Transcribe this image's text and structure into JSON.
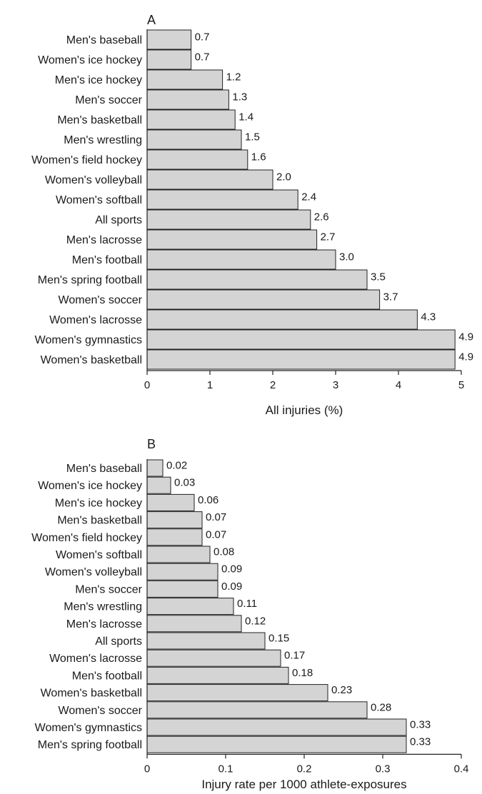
{
  "colors": {
    "bar_fill": "#d4d4d4",
    "bar_stroke": "#222222",
    "text": "#1a1a1a"
  },
  "chart_data": [
    {
      "type": "bar",
      "orientation": "horizontal",
      "panel": "A",
      "xlabel": "All injuries (%)",
      "xlim": [
        0,
        5
      ],
      "xticks": [
        "0",
        "1",
        "2",
        "3",
        "4",
        "5"
      ],
      "categories": [
        "Men's baseball",
        "Women's ice hockey",
        "Men's ice hockey",
        "Men's soccer",
        "Men's basketball",
        "Men's wrestling",
        "Women's field hockey",
        "Women's volleyball",
        "Women's softball",
        "All sports",
        "Men's lacrosse",
        "Men's football",
        "Men's spring football",
        "Women's soccer",
        "Women's lacrosse",
        "Women's gymnastics",
        "Women's basketball"
      ],
      "values": [
        0.7,
        0.7,
        1.2,
        1.3,
        1.4,
        1.5,
        1.6,
        2.0,
        2.4,
        2.6,
        2.7,
        3.0,
        3.5,
        3.7,
        4.3,
        4.9,
        4.9
      ],
      "value_labels": [
        "0.7",
        "0.7",
        "1.2",
        "1.3",
        "1.4",
        "1.5",
        "1.6",
        "2.0",
        "2.4",
        "2.6",
        "2.7",
        "3.0",
        "3.5",
        "3.7",
        "4.3",
        "4.9",
        "4.9"
      ],
      "grid": false
    },
    {
      "type": "bar",
      "orientation": "horizontal",
      "panel": "B",
      "xlabel": "Injury rate per 1000 athlete-exposures",
      "xlim": [
        0,
        0.4
      ],
      "xticks": [
        "0",
        "0.1",
        "0.2",
        "0.3",
        "0.4"
      ],
      "categories": [
        "Men's baseball",
        "Women's ice hockey",
        "Men's ice hockey",
        "Men's basketball",
        "Women's field hockey",
        "Women's softball",
        "Women's volleyball",
        "Men's soccer",
        "Men's wrestling",
        "Men's lacrosse",
        "All sports",
        "Women's lacrosse",
        "Men's football",
        "Women's basketball",
        "Women's soccer",
        "Women's gymnastics",
        "Men's spring football"
      ],
      "values": [
        0.02,
        0.03,
        0.06,
        0.07,
        0.07,
        0.08,
        0.09,
        0.09,
        0.11,
        0.12,
        0.15,
        0.17,
        0.18,
        0.23,
        0.28,
        0.33,
        0.33
      ],
      "value_labels": [
        "0.02",
        "0.03",
        "0.06",
        "0.07",
        "0.07",
        "0.08",
        "0.09",
        "0.09",
        "0.11",
        "0.12",
        "0.15",
        "0.17",
        "0.18",
        "0.23",
        "0.28",
        "0.33",
        "0.33"
      ],
      "grid": false
    }
  ]
}
